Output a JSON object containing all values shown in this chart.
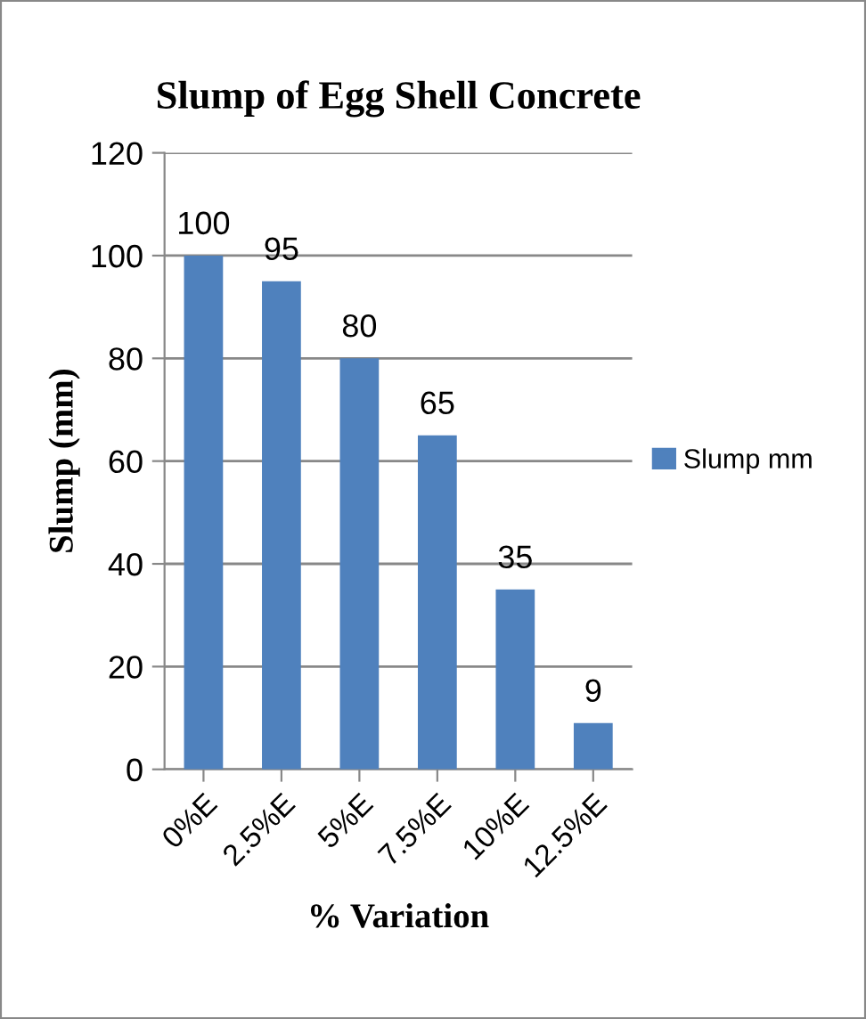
{
  "chart_data": {
    "type": "bar",
    "title": "Slump of Egg Shell Concrete",
    "xlabel": "% Variation",
    "ylabel": "Slump (mm)",
    "categories": [
      "0%E",
      "2.5%E",
      "5%E",
      "7.5%E",
      "10%E",
      "12.5%E"
    ],
    "series": [
      {
        "name": "Slump mm",
        "color": "#4f81bd",
        "values": [
          100,
          95,
          80,
          65,
          35,
          9
        ]
      }
    ],
    "ylim": [
      0,
      120
    ],
    "yticks": [
      0,
      20,
      40,
      60,
      80,
      100,
      120
    ],
    "grid": "y",
    "legend": "right",
    "data_labels": true
  }
}
